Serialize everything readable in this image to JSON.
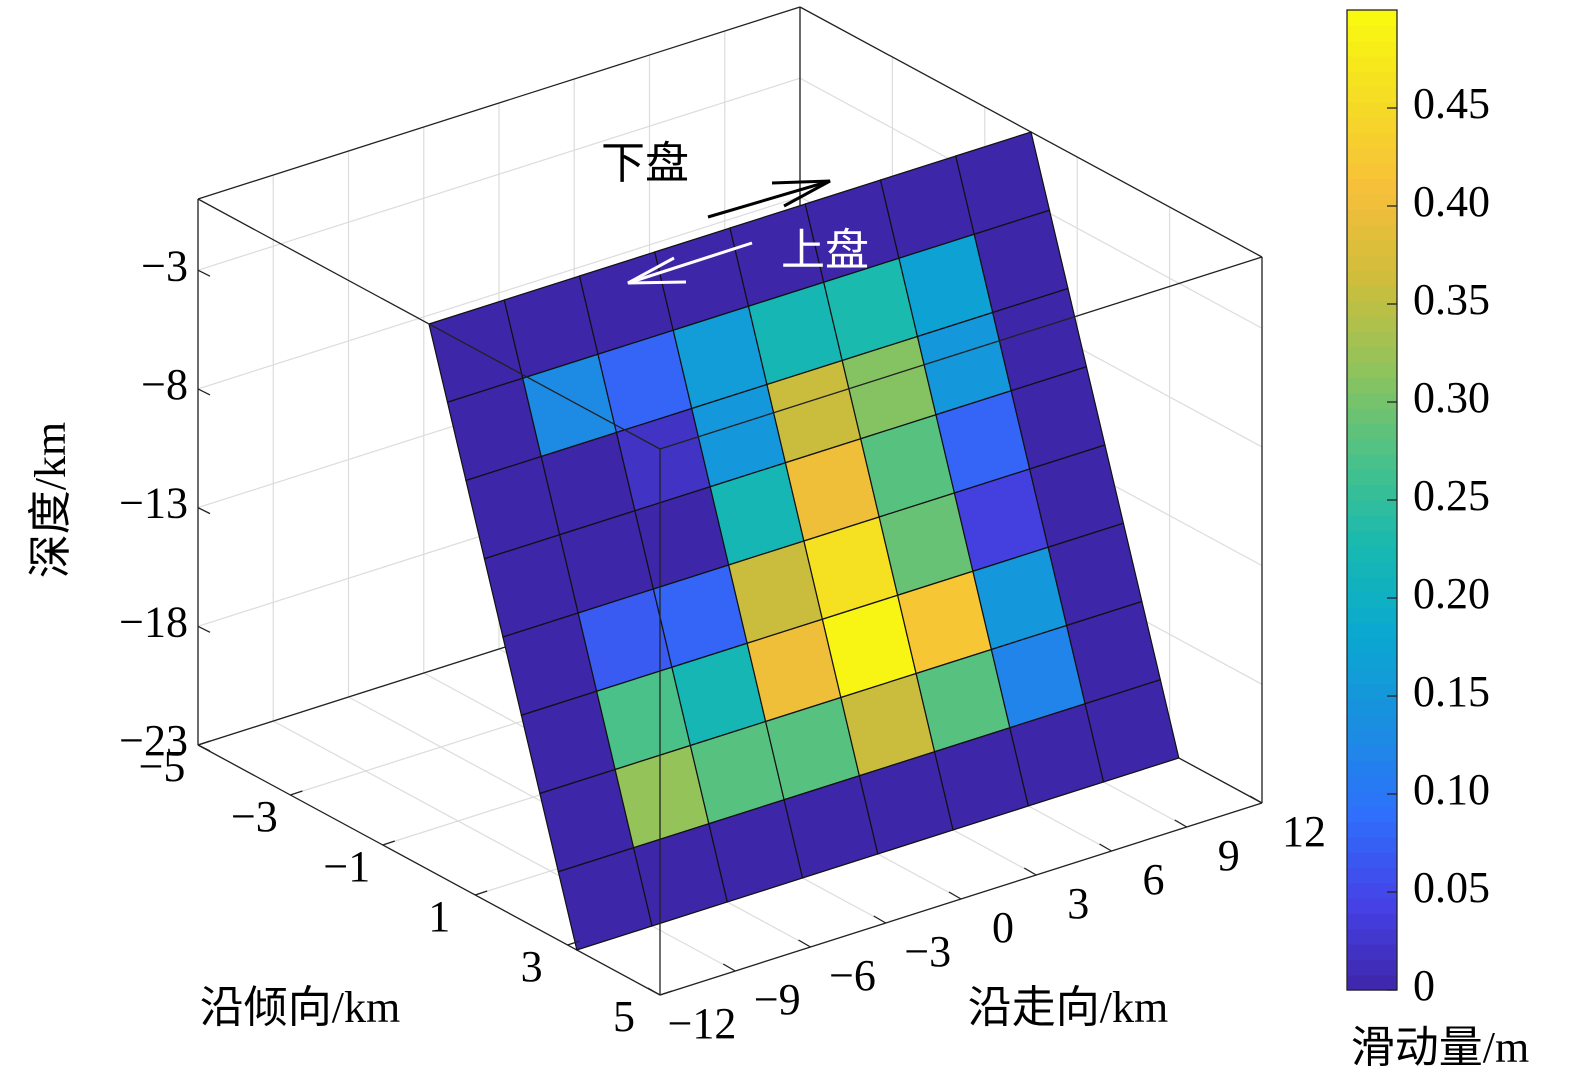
{
  "chart_data": {
    "type": "surface3d",
    "colormap": "parula",
    "grid": true,
    "annotations": [
      "下盘",
      "上盘"
    ],
    "xlabel": "沿走向/km",
    "ylabel": "沿倾向/km",
    "zlabel": "深度/km",
    "colorbar_label": "滑动量/m",
    "xlim": [
      -12,
      12
    ],
    "xticks": [
      {
        "value": -12,
        "label": "−12"
      },
      {
        "value": -9,
        "label": "−9"
      },
      {
        "value": -6,
        "label": "−6"
      },
      {
        "value": -3,
        "label": "−3"
      },
      0,
      3,
      6,
      9,
      12
    ],
    "ylim": [
      -5,
      5
    ],
    "yticks": [
      {
        "value": -5,
        "label": "−5"
      },
      {
        "value": -3,
        "label": "−3"
      },
      {
        "value": -1,
        "label": "−1"
      },
      1,
      3,
      5
    ],
    "zlim": [
      -23,
      0
    ],
    "zticks": [
      {
        "value": -23,
        "label": "−23"
      },
      {
        "value": -18,
        "label": "−18"
      },
      {
        "value": -13,
        "label": "−13"
      },
      {
        "value": -8,
        "label": "−8"
      },
      {
        "value": -3,
        "label": "−3"
      }
    ],
    "clim": [
      0,
      0.5
    ],
    "cticks": [
      0,
      0.05,
      {
        "value": 0.1,
        "label": "0.10"
      },
      0.15,
      {
        "value": 0.2,
        "label": "0.20"
      },
      0.25,
      {
        "value": 0.3,
        "label": "0.30"
      },
      0.35,
      {
        "value": 0.4,
        "label": "0.40"
      },
      0.45
    ],
    "values": [
      [
        0,
        0,
        0,
        0,
        0,
        0,
        0,
        0
      ],
      [
        0,
        0.13,
        0.08,
        0.16,
        0.22,
        0.23,
        0.17,
        0
      ],
      [
        0,
        0,
        0.02,
        0.15,
        0.36,
        0.31,
        0.15,
        0
      ],
      [
        0,
        0,
        0,
        0.22,
        0.4,
        0.28,
        0.08,
        0
      ],
      [
        0,
        0.07,
        0.08,
        0.36,
        0.46,
        0.29,
        0.04,
        0
      ],
      [
        0,
        0.27,
        0.22,
        0.4,
        0.49,
        0.42,
        0.15,
        0
      ],
      [
        0,
        0.32,
        0.28,
        0.28,
        0.36,
        0.28,
        0.12,
        0
      ],
      [
        0,
        0,
        0,
        0,
        0,
        0,
        0,
        0
      ]
    ]
  }
}
